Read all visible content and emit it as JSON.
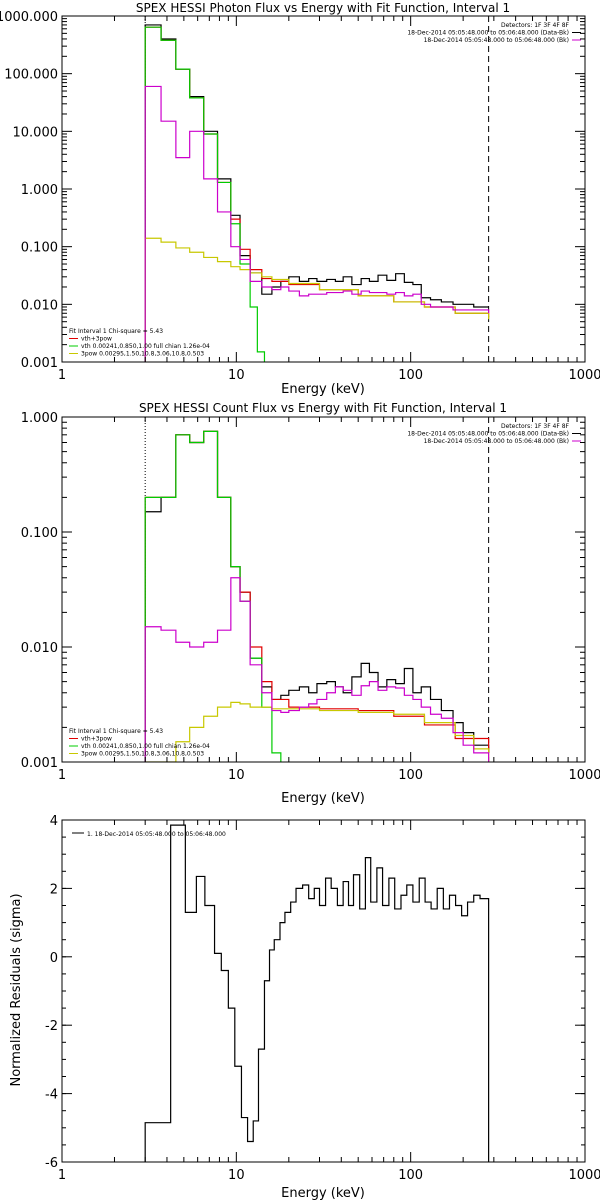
{
  "figure": {
    "background": "#ffffff",
    "axis_color": "#000000"
  },
  "chart_data": [
    {
      "type": "line",
      "title": "SPEX HESSI Photon Flux vs Energy with Fit Function, Interval 1",
      "xlabel": "Energy (keV)",
      "ylabel": "",
      "xscale": "log",
      "yscale": "log",
      "xlim": [
        1,
        1000
      ],
      "ylim": [
        0.001,
        1000
      ],
      "x_ticks": [
        1,
        10,
        100,
        1000
      ],
      "x_tick_labels": [
        "1",
        "10",
        "100",
        "1000"
      ],
      "y_ticks": [
        0.001,
        0.01,
        0.1,
        1,
        10,
        100,
        1000
      ],
      "y_tick_labels": [
        "0.001",
        "0.010",
        "0.100",
        "1.000",
        "10.000",
        "100.000",
        "1000.000"
      ],
      "vlines": [
        {
          "x": 3,
          "style": "dotted"
        },
        {
          "x": 280,
          "style": "dashed"
        }
      ],
      "legend_top_right": {
        "entries": [
          {
            "text": "Detectors: 1F 3F 4F 8F",
            "color": ""
          },
          {
            "text": "18-Dec-2014 05:05:48.000 to 05:06:48.000 (Data-Bk)",
            "color": "#000000"
          },
          {
            "text": "18-Dec-2014 05:05:48.000 to 05:06:48.000 (Bk)",
            "color": "#cc00cc"
          }
        ]
      },
      "legend_bottom_left": {
        "entries": [
          {
            "text": "Fit Interval 1    Chi-square = 5.43",
            "color": ""
          },
          {
            "text": "vth+3pow",
            "color": "#e00000"
          },
          {
            "text": "vth 0.00241,0.850,1.00  full chian 1.26e-04",
            "color": "#00cc00"
          },
          {
            "text": "3pow 0.00295,1.50,10.8,3.06,10.8,0.503",
            "color": "#c8c800"
          }
        ]
      },
      "series": [
        {
          "name": "18-Dec-2014 05:05:48.000 to 05:06:48.000 (Data-Bk)",
          "color": "#000000",
          "style": "step",
          "x": [
            3,
            3.7,
            4.5,
            5.4,
            6.5,
            7.8,
            9.3,
            10.5,
            12,
            14,
            16,
            18,
            20,
            23,
            26,
            29,
            33,
            37,
            41,
            46,
            52,
            58,
            65,
            73,
            82,
            92,
            103,
            115,
            130,
            150,
            175,
            200,
            230,
            280
          ],
          "y": [
            700,
            400,
            120,
            40,
            10,
            1.5,
            0.35,
            0.07,
            0.035,
            0.015,
            0.02,
            0.025,
            0.03,
            0.025,
            0.028,
            0.025,
            0.027,
            0.025,
            0.03,
            0.022,
            0.028,
            0.025,
            0.032,
            0.026,
            0.034,
            0.024,
            0.022,
            0.013,
            0.012,
            0.011,
            0.01,
            0.01,
            0.009,
            0.009
          ]
        },
        {
          "name": "vth+3pow",
          "color": "#e00000",
          "style": "step",
          "x": [
            3,
            3.7,
            4.5,
            5.4,
            6.5,
            7.8,
            9.3,
            10.5,
            12,
            14,
            16,
            20,
            30,
            50,
            80,
            120,
            180,
            280
          ],
          "y": [
            640,
            380,
            120,
            38,
            9,
            1.3,
            0.3,
            0.09,
            0.04,
            0.028,
            0.025,
            0.022,
            0.018,
            0.014,
            0.011,
            0.009,
            0.007,
            0.006
          ]
        },
        {
          "name": "vth 0.00241,0.850,1.00  full chian 1.26e-04",
          "color": "#00cc00",
          "style": "step",
          "x": [
            3,
            3.7,
            4.5,
            5.4,
            6.5,
            7.8,
            9.3,
            10.5,
            12,
            13.2,
            14.5
          ],
          "y": [
            640,
            380,
            120,
            38,
            9,
            1.3,
            0.25,
            0.05,
            0.009,
            0.0015,
            0.001
          ]
        },
        {
          "name": "3pow 0.00295,1.50,10.8,3.06,10.8,0.503",
          "color": "#c8c800",
          "style": "step",
          "x": [
            3,
            3.7,
            4.5,
            5.4,
            6.5,
            7.8,
            9.3,
            10.5,
            12,
            14,
            16,
            20,
            30,
            50,
            80,
            120,
            180,
            280
          ],
          "y": [
            0.14,
            0.12,
            0.095,
            0.08,
            0.065,
            0.055,
            0.045,
            0.04,
            0.035,
            0.03,
            0.027,
            0.023,
            0.018,
            0.014,
            0.011,
            0.009,
            0.007,
            0.0055
          ]
        },
        {
          "name": "18-Dec-2014 05:05:48.000 to 05:06:48.000 (Bk)",
          "color": "#cc00cc",
          "style": "step",
          "x": [
            3,
            3.7,
            4.5,
            5.4,
            6.5,
            7.8,
            9.3,
            10.5,
            12,
            14,
            16,
            18,
            20,
            23,
            26,
            29,
            33,
            37,
            41,
            46,
            52,
            58,
            65,
            73,
            82,
            92,
            103,
            115,
            130,
            150,
            175,
            200,
            230,
            280
          ],
          "y": [
            60,
            15,
            3.5,
            10,
            1.5,
            0.4,
            0.1,
            0.06,
            0.025,
            0.02,
            0.018,
            0.02,
            0.017,
            0.014,
            0.015,
            0.015,
            0.016,
            0.016,
            0.017,
            0.015,
            0.017,
            0.016,
            0.016,
            0.015,
            0.016,
            0.014,
            0.015,
            0.01,
            0.009,
            0.009,
            0.008,
            0.008,
            0.008,
            0.007
          ]
        }
      ]
    },
    {
      "type": "line",
      "title": "SPEX HESSI Count Flux vs Energy with Fit Function, Interval 1",
      "xlabel": "Energy (keV)",
      "ylabel": "",
      "xscale": "log",
      "yscale": "log",
      "xlim": [
        1,
        1000
      ],
      "ylim": [
        0.001,
        1
      ],
      "x_ticks": [
        1,
        10,
        100,
        1000
      ],
      "x_tick_labels": [
        "1",
        "10",
        "100",
        "1000"
      ],
      "y_ticks": [
        0.001,
        0.01,
        0.1,
        1
      ],
      "y_tick_labels": [
        "0.001",
        "0.010",
        "0.100",
        "1.000"
      ],
      "vlines": [
        {
          "x": 3,
          "style": "dotted"
        },
        {
          "x": 280,
          "style": "dashed"
        }
      ],
      "legend_top_right": {
        "entries": [
          {
            "text": "Detectors: 1F 3F 4F 8F",
            "color": ""
          },
          {
            "text": "18-Dec-2014 05:05:48.000 to 05:06:48.000 (Data-Bk)",
            "color": "#000000"
          },
          {
            "text": "18-Dec-2014 05:05:48.000 to 05:06:48.000 (Bk)",
            "color": "#cc00cc"
          }
        ]
      },
      "legend_bottom_left": {
        "entries": [
          {
            "text": "Fit Interval 1    Chi-square = 5.43",
            "color": ""
          },
          {
            "text": "vth+3pow",
            "color": "#e00000"
          },
          {
            "text": "vth 0.00241,0.850,1.00  full chian 1.26e-04",
            "color": "#00cc00"
          },
          {
            "text": "3pow 0.00295,1.50,10.8,3.06,10.8,0.503",
            "color": "#c8c800"
          }
        ]
      },
      "series": [
        {
          "name": "18-Dec-2014 05:05:48.000 to 05:06:48.000 (Data-Bk)",
          "color": "#000000",
          "style": "step",
          "x": [
            3,
            3.7,
            4.5,
            5.4,
            6.5,
            7.8,
            9.3,
            10.5,
            12,
            14,
            16,
            18,
            20,
            23,
            26,
            29,
            33,
            37,
            41,
            46,
            52,
            58,
            65,
            73,
            82,
            92,
            103,
            115,
            130,
            150,
            175,
            200,
            230,
            280
          ],
          "y": [
            0.15,
            0.2,
            0.7,
            0.6,
            0.75,
            0.2,
            0.05,
            0.03,
            0.008,
            0.0045,
            0.0035,
            0.0038,
            0.0042,
            0.0045,
            0.004,
            0.0048,
            0.005,
            0.0045,
            0.004,
            0.0055,
            0.0072,
            0.006,
            0.0045,
            0.0052,
            0.0048,
            0.0065,
            0.004,
            0.0045,
            0.0035,
            0.0028,
            0.0022,
            0.0018,
            0.0014,
            0.0012
          ]
        },
        {
          "name": "vth+3pow",
          "color": "#e00000",
          "style": "step",
          "x": [
            3,
            3.7,
            4.5,
            5.4,
            6.5,
            7.8,
            9.3,
            10.5,
            12,
            14,
            16,
            20,
            30,
            50,
            80,
            120,
            180,
            280
          ],
          "y": [
            0.2,
            0.2,
            0.7,
            0.6,
            0.75,
            0.2,
            0.05,
            0.03,
            0.01,
            0.005,
            0.0035,
            0.003,
            0.0029,
            0.0028,
            0.0025,
            0.0021,
            0.0016,
            0.0012
          ]
        },
        {
          "name": "vth 0.00241,0.850,1.00  full chian 1.26e-04",
          "color": "#00cc00",
          "style": "step",
          "x": [
            3,
            3.7,
            4.5,
            5.4,
            6.5,
            7.8,
            9.3,
            10.5,
            12,
            14,
            16,
            18
          ],
          "y": [
            0.2,
            0.2,
            0.7,
            0.6,
            0.75,
            0.2,
            0.05,
            0.025,
            0.008,
            0.003,
            0.0012,
            0.001
          ]
        },
        {
          "name": "3pow 0.00295,1.50,10.8,3.06,10.8,0.503",
          "color": "#c8c800",
          "style": "step",
          "x": [
            3,
            4.5,
            5.4,
            6.5,
            7.8,
            9.3,
            10.5,
            12,
            16,
            20,
            30,
            50,
            80,
            120,
            180,
            230,
            280
          ],
          "y": [
            0.001,
            0.0015,
            0.002,
            0.0025,
            0.003,
            0.0033,
            0.0032,
            0.003,
            0.0029,
            0.0029,
            0.0028,
            0.0027,
            0.0026,
            0.0022,
            0.0017,
            0.0013,
            0.001
          ]
        },
        {
          "name": "18-Dec-2014 05:05:48.000 to 05:06:48.000 (Bk)",
          "color": "#cc00cc",
          "style": "step",
          "x": [
            3,
            3.7,
            4.5,
            5.4,
            6.5,
            7.8,
            9.3,
            10.5,
            12,
            14,
            16,
            18,
            20,
            23,
            26,
            29,
            33,
            37,
            41,
            46,
            52,
            58,
            65,
            73,
            82,
            92,
            103,
            115,
            130,
            150,
            175,
            200,
            230,
            280
          ],
          "y": [
            0.015,
            0.014,
            0.011,
            0.01,
            0.011,
            0.014,
            0.04,
            0.025,
            0.007,
            0.004,
            0.0028,
            0.0027,
            0.0028,
            0.003,
            0.0032,
            0.0035,
            0.004,
            0.0045,
            0.0042,
            0.0038,
            0.0046,
            0.005,
            0.0042,
            0.0045,
            0.0044,
            0.0038,
            0.0035,
            0.003,
            0.0026,
            0.0024,
            0.0018,
            0.0014,
            0.0012,
            0.001
          ]
        }
      ]
    },
    {
      "type": "line",
      "title": "",
      "xlabel": "Energy (keV)",
      "ylabel": "Normalized Residuals (sigma)",
      "xscale": "log",
      "yscale": "linear",
      "xlim": [
        1,
        1000
      ],
      "ylim": [
        -6,
        4
      ],
      "x_ticks": [
        1,
        10,
        100,
        1000
      ],
      "x_tick_labels": [
        "1",
        "10",
        "100",
        "1000"
      ],
      "y_ticks": [
        -6,
        -4,
        -2,
        0,
        2,
        4
      ],
      "y_tick_labels": [
        "-6",
        "-4",
        "-2",
        "0",
        "2",
        "4"
      ],
      "legend_top_left": {
        "entries": [
          {
            "text": "1. 18-Dec-2014 05:05:48.000 to 05:06:48.000",
            "color": "#000000"
          }
        ]
      },
      "series": [
        {
          "name": "1. 18-Dec-2014 05:05:48.000 to 05:06:48.000",
          "color": "#000000",
          "style": "step",
          "x": [
            3,
            4.2,
            5.1,
            5.9,
            6.6,
            7.5,
            8.2,
            9.0,
            9.8,
            10.7,
            11.6,
            12.5,
            13.4,
            14.5,
            15.5,
            16.5,
            17.8,
            19,
            20.5,
            22,
            24,
            26,
            28,
            30,
            32.5,
            35,
            38,
            41,
            44,
            47,
            51,
            55,
            59,
            64,
            69,
            75,
            81,
            88,
            95,
            103,
            112,
            121,
            131,
            142,
            154,
            167,
            181,
            196,
            212,
            230,
            250,
            280
          ],
          "y": [
            -4.85,
            3.85,
            1.3,
            2.35,
            1.5,
            0.1,
            -0.4,
            -1.5,
            -3.2,
            -4.7,
            -5.4,
            -4.8,
            -2.7,
            -0.7,
            0.2,
            0.5,
            1.0,
            1.3,
            1.6,
            2.0,
            2.1,
            1.7,
            2.0,
            1.5,
            2.3,
            2.0,
            1.5,
            2.2,
            1.5,
            2.4,
            1.4,
            2.9,
            1.6,
            2.6,
            1.5,
            2.3,
            1.4,
            1.8,
            2.1,
            1.6,
            2.3,
            1.6,
            1.4,
            2.0,
            1.4,
            1.8,
            1.5,
            1.2,
            1.6,
            1.8,
            1.7,
            -6
          ]
        }
      ]
    }
  ]
}
